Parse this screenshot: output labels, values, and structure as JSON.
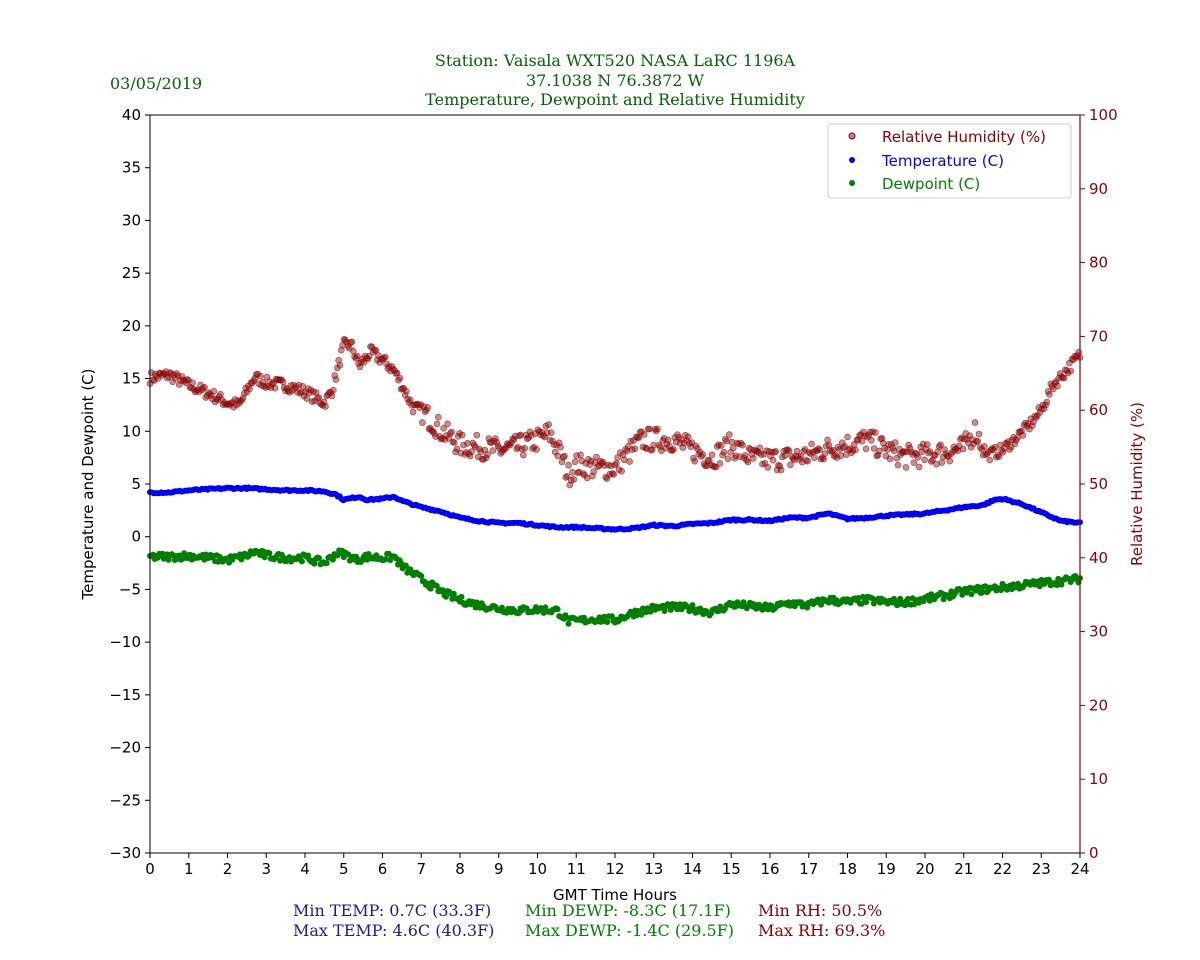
{
  "date": "03/05/2019",
  "title_lines": [
    "Station:  Vaisala WXT520  NASA LaRC 1196A",
    "37.1038 N 76.3872 W",
    "Temperature, Dewpoint and Relative Humidity"
  ],
  "stats": {
    "min_temp": "Min TEMP: 0.7C (33.3F)",
    "max_temp": "Max TEMP: 4.6C (40.3F)",
    "min_dewp": "Min DEWP: -8.3C (17.1F)",
    "max_dewp": "Max DEWP: -1.4C (29.5F)",
    "min_rh": "Min RH: 50.5%",
    "max_rh": "Max RH: 69.3%"
  },
  "colors": {
    "title": "#006400",
    "temp": "#0000ff",
    "dewp": "#008000",
    "rh": "#8b0000",
    "temp_stats": "#1a1a9c"
  },
  "chart_data": {
    "type": "scatter",
    "xlabel": "GMT Time Hours",
    "ylabel": "Temperature and Dewpoint (C)",
    "y2label": "Relative Humidity (%)",
    "xlim": [
      0,
      24
    ],
    "ylim": [
      -30,
      40
    ],
    "y2lim": [
      0,
      100
    ],
    "xticks": [
      0,
      1,
      2,
      3,
      4,
      5,
      6,
      7,
      8,
      9,
      10,
      11,
      12,
      13,
      14,
      15,
      16,
      17,
      18,
      19,
      20,
      21,
      22,
      23,
      24
    ],
    "yticks": [
      -30,
      -25,
      -20,
      -15,
      -10,
      -5,
      0,
      5,
      10,
      15,
      20,
      25,
      30,
      35,
      40
    ],
    "yticklabels": [
      "−30",
      "−25",
      "−20",
      "−15",
      "−10",
      "−5",
      "0",
      "5",
      "10",
      "15",
      "20",
      "25",
      "30",
      "35",
      "40"
    ],
    "y2ticks": [
      0,
      10,
      20,
      30,
      40,
      50,
      60,
      70,
      80,
      90,
      100
    ],
    "legend": {
      "placement": "top-right",
      "entries": [
        "Relative Humidity (%)",
        "Temperature (C)",
        "Dewpoint (C)"
      ]
    },
    "series": [
      {
        "name": "Relative Humidity (%)",
        "axis": "right",
        "x": [
          0,
          0.5,
          1,
          1.5,
          2,
          2.3,
          2.7,
          3,
          3.5,
          4,
          4.5,
          4.7,
          5,
          5.2,
          5.4,
          5.7,
          6,
          6.3,
          6.5,
          6.8,
          7,
          7.5,
          8,
          8.5,
          9,
          9.5,
          10,
          10.3,
          10.6,
          10.8,
          11,
          11.5,
          12,
          12.3,
          12.7,
          13,
          13.5,
          14,
          14.5,
          15,
          15.5,
          16,
          16.5,
          17,
          17.5,
          18,
          18.5,
          19,
          19.5,
          20,
          20.5,
          21,
          21.3,
          21.6,
          22,
          22.3,
          22.7,
          23,
          23.3,
          23.7,
          24
        ],
        "y": [
          64.4,
          64.8,
          63.4,
          62.3,
          61,
          60.7,
          64.5,
          63.7,
          63.4,
          62.5,
          61,
          62.7,
          68.8,
          68.8,
          66,
          67.9,
          66.8,
          65.4,
          63.4,
          60.3,
          60,
          57.3,
          55.3,
          55,
          54.6,
          55,
          56,
          56.9,
          53.9,
          51.2,
          52.6,
          52.2,
          52.2,
          53.9,
          56,
          56,
          56,
          54.6,
          53.5,
          55.3,
          53.5,
          53.3,
          53.5,
          53.9,
          54.8,
          55.3,
          56,
          54.6,
          53.7,
          53.9,
          54.3,
          54.9,
          57.3,
          53.9,
          54.6,
          56,
          58,
          60,
          63.4,
          65.7,
          67.5
        ]
      },
      {
        "name": "Temperature (C)",
        "axis": "left",
        "x": [
          0,
          0.5,
          1,
          1.5,
          2,
          2.5,
          3,
          3.5,
          4,
          4.5,
          4.8,
          5,
          5.4,
          5.6,
          6,
          6.3,
          6.5,
          7,
          7.5,
          8,
          8.5,
          9,
          9.5,
          10,
          10.5,
          11,
          11.5,
          12,
          12.5,
          13,
          13.5,
          14,
          14.5,
          15,
          15.5,
          16,
          16.5,
          17,
          17.5,
          18,
          18.5,
          19,
          19.5,
          20,
          20.5,
          21,
          21.5,
          21.8,
          22,
          22.5,
          23,
          23.5,
          24
        ],
        "y": [
          4.2,
          4.2,
          4.4,
          4.5,
          4.6,
          4.6,
          4.5,
          4.4,
          4.4,
          4.3,
          4.0,
          3.5,
          3.8,
          3.5,
          3.6,
          3.8,
          3.4,
          2.8,
          2.4,
          1.8,
          1.5,
          1.3,
          1.3,
          1.1,
          0.9,
          0.9,
          0.8,
          0.7,
          0.8,
          1.1,
          1.0,
          1.2,
          1.3,
          1.6,
          1.6,
          1.5,
          1.8,
          1.8,
          2.2,
          1.7,
          1.8,
          2.0,
          2.1,
          2.2,
          2.5,
          2.8,
          3.0,
          3.5,
          3.6,
          3.1,
          2.3,
          1.5,
          1.3
        ]
      },
      {
        "name": "Dewpoint (C)",
        "axis": "left",
        "x": [
          0,
          0.5,
          1,
          1.5,
          2,
          2.5,
          2.7,
          3,
          3.5,
          4,
          4.5,
          4.8,
          5,
          5.3,
          5.6,
          6,
          6.3,
          6.5,
          7,
          7.5,
          8,
          8.5,
          9,
          9.5,
          10,
          10.5,
          10.8,
          11,
          11.5,
          12,
          12.5,
          13,
          13.5,
          14,
          14.5,
          15,
          15.5,
          16,
          16.5,
          17,
          17.5,
          18,
          18.5,
          19,
          19.5,
          20,
          20.5,
          21,
          21.5,
          22,
          22.5,
          23,
          23.5,
          24
        ],
        "y": [
          -1.9,
          -1.9,
          -1.8,
          -2.0,
          -2.2,
          -1.8,
          -1.4,
          -1.8,
          -2.0,
          -2.0,
          -2.5,
          -1.6,
          -1.6,
          -2.2,
          -1.9,
          -2.0,
          -1.9,
          -2.8,
          -4.0,
          -5.2,
          -6.0,
          -6.5,
          -6.8,
          -7.0,
          -6.9,
          -7.0,
          -8.0,
          -8.0,
          -7.8,
          -7.9,
          -7.2,
          -6.8,
          -6.7,
          -6.8,
          -7.2,
          -6.4,
          -6.6,
          -6.8,
          -6.3,
          -6.5,
          -6.0,
          -6.2,
          -6.0,
          -6.2,
          -6.2,
          -5.9,
          -5.6,
          -5.2,
          -5.0,
          -4.8,
          -4.6,
          -4.4,
          -4.2,
          -4.0
        ]
      }
    ]
  }
}
